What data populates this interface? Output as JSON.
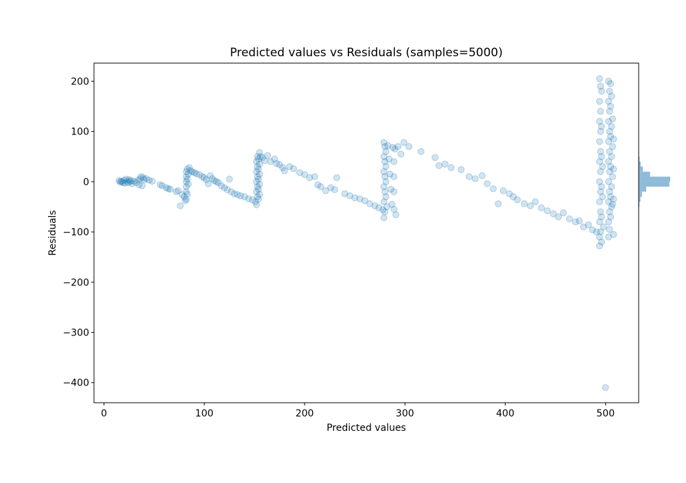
{
  "chart_data": {
    "type": "scatter",
    "title": "Predicted values vs Residuals (samples=5000)",
    "xlabel": "Predicted values",
    "ylabel": "Residuals",
    "xlim": [
      -10,
      533
    ],
    "ylim": [
      -440,
      236
    ],
    "xticks": [
      0,
      100,
      200,
      300,
      400,
      500
    ],
    "yticks": [
      200,
      100,
      0,
      -100,
      -200,
      -300,
      -400
    ],
    "xtick_labels": [
      "0",
      "100",
      "200",
      "300",
      "400",
      "500"
    ],
    "ytick_labels": [
      "200",
      "100",
      "0",
      "−100",
      "−200",
      "−300",
      "−400"
    ],
    "grid": false,
    "marker_color": "#1f77b4",
    "marker_alpha": 0.2,
    "histogram_color": "#1f77b4",
    "histogram_alpha": 0.5,
    "residual_histogram": {
      "orientation": "horizontal",
      "bin_centers": [
        75,
        60,
        45,
        35,
        25,
        15,
        5,
        -5,
        -15,
        -25,
        -35,
        -45,
        -55,
        -65
      ],
      "counts": [
        3,
        10,
        30,
        70,
        140,
        380,
        1050,
        1020,
        250,
        110,
        60,
        25,
        10,
        5
      ]
    },
    "points": [
      [
        15,
        2
      ],
      [
        16,
        -1
      ],
      [
        17,
        1
      ],
      [
        18,
        0
      ],
      [
        19,
        -2
      ],
      [
        20,
        3
      ],
      [
        21,
        -3
      ],
      [
        22,
        5
      ],
      [
        23,
        1
      ],
      [
        24,
        -2
      ],
      [
        25,
        4
      ],
      [
        26,
        0
      ],
      [
        27,
        2
      ],
      [
        28,
        -4
      ],
      [
        30,
        1
      ],
      [
        32,
        -2
      ],
      [
        34,
        3
      ],
      [
        35,
        -6
      ],
      [
        36,
        6
      ],
      [
        37,
        10
      ],
      [
        38,
        -8
      ],
      [
        39,
        8
      ],
      [
        40,
        4
      ],
      [
        42,
        6
      ],
      [
        45,
        3
      ],
      [
        48,
        1
      ],
      [
        56,
        -6
      ],
      [
        58,
        -8
      ],
      [
        62,
        -12
      ],
      [
        64,
        -14
      ],
      [
        66,
        -15
      ],
      [
        72,
        -20
      ],
      [
        74,
        -18
      ],
      [
        76,
        -48
      ],
      [
        78,
        -26
      ],
      [
        80,
        -30
      ],
      [
        81,
        -38
      ],
      [
        82,
        -35
      ],
      [
        82,
        -20
      ],
      [
        82,
        -10
      ],
      [
        82,
        0
      ],
      [
        82,
        10
      ],
      [
        82,
        20
      ],
      [
        83,
        25
      ],
      [
        83,
        5
      ],
      [
        83,
        -25
      ],
      [
        84,
        15
      ],
      [
        84,
        -5
      ],
      [
        85,
        28
      ],
      [
        86,
        22
      ],
      [
        88,
        20
      ],
      [
        90,
        18
      ],
      [
        92,
        16
      ],
      [
        95,
        14
      ],
      [
        98,
        10
      ],
      [
        100,
        8
      ],
      [
        102,
        4
      ],
      [
        104,
        -4
      ],
      [
        106,
        12
      ],
      [
        108,
        6
      ],
      [
        110,
        2
      ],
      [
        112,
        0
      ],
      [
        114,
        -2
      ],
      [
        117,
        -8
      ],
      [
        120,
        -12
      ],
      [
        123,
        -16
      ],
      [
        125,
        5
      ],
      [
        127,
        -20
      ],
      [
        130,
        -24
      ],
      [
        133,
        -26
      ],
      [
        136,
        -28
      ],
      [
        140,
        -30
      ],
      [
        144,
        -34
      ],
      [
        148,
        -36
      ],
      [
        151,
        -40
      ],
      [
        152,
        -46
      ],
      [
        152,
        -20
      ],
      [
        152,
        0
      ],
      [
        152,
        20
      ],
      [
        152,
        40
      ],
      [
        153,
        -30
      ],
      [
        153,
        -10
      ],
      [
        153,
        10
      ],
      [
        153,
        30
      ],
      [
        153,
        50
      ],
      [
        154,
        -35
      ],
      [
        154,
        -15
      ],
      [
        154,
        5
      ],
      [
        154,
        25
      ],
      [
        154,
        45
      ],
      [
        155,
        58
      ],
      [
        155,
        35
      ],
      [
        155,
        15
      ],
      [
        155,
        -5
      ],
      [
        155,
        -25
      ],
      [
        156,
        50
      ],
      [
        158,
        48
      ],
      [
        160,
        42
      ],
      [
        163,
        52
      ],
      [
        166,
        40
      ],
      [
        170,
        45
      ],
      [
        172,
        36
      ],
      [
        175,
        34
      ],
      [
        178,
        28
      ],
      [
        180,
        22
      ],
      [
        185,
        30
      ],
      [
        189,
        26
      ],
      [
        195,
        18
      ],
      [
        200,
        14
      ],
      [
        205,
        8
      ],
      [
        210,
        10
      ],
      [
        213,
        -6
      ],
      [
        216,
        -10
      ],
      [
        221,
        -18
      ],
      [
        226,
        -12
      ],
      [
        230,
        -16
      ],
      [
        232,
        8
      ],
      [
        240,
        -24
      ],
      [
        245,
        -28
      ],
      [
        250,
        -32
      ],
      [
        255,
        -34
      ],
      [
        260,
        -38
      ],
      [
        265,
        -44
      ],
      [
        270,
        -48
      ],
      [
        274,
        -52
      ],
      [
        278,
        -56
      ],
      [
        279,
        -72
      ],
      [
        279,
        -40
      ],
      [
        279,
        -10
      ],
      [
        279,
        20
      ],
      [
        279,
        50
      ],
      [
        279,
        78
      ],
      [
        280,
        70
      ],
      [
        280,
        40
      ],
      [
        280,
        10
      ],
      [
        280,
        -20
      ],
      [
        280,
        -60
      ],
      [
        281,
        60
      ],
      [
        281,
        30
      ],
      [
        281,
        0
      ],
      [
        281,
        -30
      ],
      [
        282,
        -50
      ],
      [
        283,
        72
      ],
      [
        284,
        45
      ],
      [
        285,
        15
      ],
      [
        286,
        -15
      ],
      [
        287,
        -45
      ],
      [
        288,
        68
      ],
      [
        289,
        40
      ],
      [
        289,
        10
      ],
      [
        289,
        -20
      ],
      [
        289,
        -55
      ],
      [
        290,
        65
      ],
      [
        291,
        -66
      ],
      [
        293,
        70
      ],
      [
        296,
        55
      ],
      [
        299,
        78
      ],
      [
        304,
        70
      ],
      [
        316,
        60
      ],
      [
        330,
        48
      ],
      [
        334,
        32
      ],
      [
        340,
        35
      ],
      [
        346,
        28
      ],
      [
        356,
        24
      ],
      [
        364,
        10
      ],
      [
        370,
        6
      ],
      [
        377,
        12
      ],
      [
        382,
        -4
      ],
      [
        388,
        -14
      ],
      [
        393,
        -44
      ],
      [
        398,
        -18
      ],
      [
        404,
        -24
      ],
      [
        408,
        -30
      ],
      [
        412,
        -36
      ],
      [
        419,
        -44
      ],
      [
        425,
        -48
      ],
      [
        430,
        -40
      ],
      [
        436,
        -52
      ],
      [
        442,
        -58
      ],
      [
        448,
        -64
      ],
      [
        453,
        -70
      ],
      [
        458,
        -62
      ],
      [
        464,
        -74
      ],
      [
        470,
        -80
      ],
      [
        474,
        -78
      ],
      [
        478,
        -90
      ],
      [
        483,
        -86
      ],
      [
        487,
        -96
      ],
      [
        491,
        -100
      ],
      [
        494,
        -128
      ],
      [
        494,
        -110
      ],
      [
        494,
        -80
      ],
      [
        494,
        -40
      ],
      [
        494,
        0
      ],
      [
        494,
        40
      ],
      [
        494,
        80
      ],
      [
        494,
        120
      ],
      [
        494,
        160
      ],
      [
        494,
        205
      ],
      [
        495,
        190
      ],
      [
        495,
        140
      ],
      [
        495,
        100
      ],
      [
        495,
        60
      ],
      [
        495,
        20
      ],
      [
        495,
        -20
      ],
      [
        495,
        -60
      ],
      [
        495,
        -100
      ],
      [
        496,
        -120
      ],
      [
        496,
        180
      ],
      [
        496,
        110
      ],
      [
        496,
        50
      ],
      [
        496,
        -10
      ],
      [
        496,
        -70
      ],
      [
        497,
        30
      ],
      [
        497,
        -30
      ],
      [
        498,
        -90
      ],
      [
        500,
        -410
      ],
      [
        503,
        200
      ],
      [
        503,
        160
      ],
      [
        503,
        120
      ],
      [
        503,
        80
      ],
      [
        503,
        40
      ],
      [
        503,
        0
      ],
      [
        503,
        -40
      ],
      [
        503,
        -80
      ],
      [
        503,
        -110
      ],
      [
        504,
        180
      ],
      [
        504,
        140
      ],
      [
        504,
        100
      ],
      [
        504,
        60
      ],
      [
        504,
        20
      ],
      [
        504,
        -20
      ],
      [
        504,
        -60
      ],
      [
        504,
        -95
      ],
      [
        505,
        195
      ],
      [
        505,
        150
      ],
      [
        505,
        90
      ],
      [
        505,
        30
      ],
      [
        505,
        -30
      ],
      [
        505,
        -70
      ],
      [
        506,
        170
      ],
      [
        506,
        110
      ],
      [
        506,
        50
      ],
      [
        506,
        -10
      ],
      [
        506,
        -50
      ],
      [
        507,
        125
      ],
      [
        507,
        70
      ],
      [
        507,
        10
      ],
      [
        507,
        -45
      ],
      [
        508,
        85
      ],
      [
        508,
        25
      ],
      [
        508,
        -35
      ],
      [
        508,
        -105
      ]
    ]
  }
}
